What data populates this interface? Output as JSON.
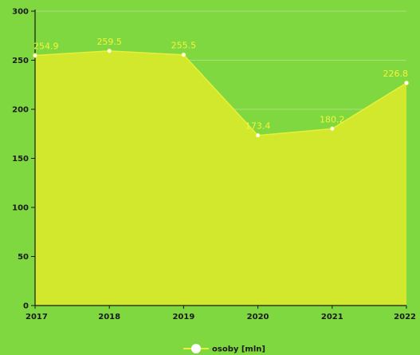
{
  "chart_data": {
    "type": "area",
    "title": "",
    "xlabel": "",
    "ylabel": "",
    "categories": [
      "2017",
      "2018",
      "2019",
      "2020",
      "2021",
      "2022"
    ],
    "series": [
      {
        "name": "osoby [mln]",
        "values": [
          254.9,
          259.5,
          255.5,
          173.4,
          180.2,
          226.8
        ],
        "labels": [
          "254.9",
          "259.5",
          "255.5",
          "173.4",
          "180.2",
          "226.8"
        ]
      }
    ],
    "ylim": [
      0,
      300
    ],
    "yticks": [
      "0",
      "50",
      "100",
      "150",
      "200",
      "250",
      "300"
    ],
    "grid": true,
    "legend": "bottom-center",
    "colors": {
      "background": "#7fd83f",
      "area_fill": "#d2e82c",
      "line": "#e6f03a",
      "marker": "#ffffff",
      "data_label": "#f4f53a",
      "grid": "#a9e07e",
      "axis": "#1a1a1a"
    }
  }
}
